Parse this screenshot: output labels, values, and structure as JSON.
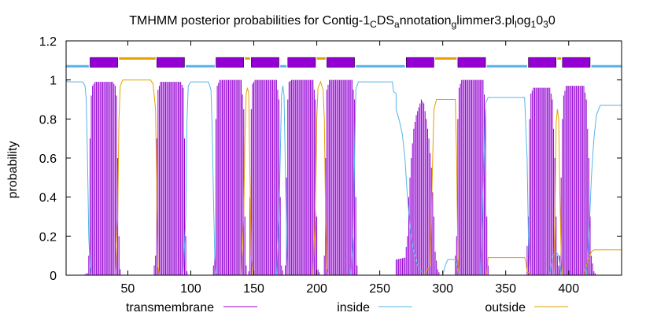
{
  "chart_data": {
    "type": "line",
    "title": "TMHMM posterior probabilities for Contig-1CDSannotationglimmer3.plog1030",
    "title_parts": [
      {
        "t": "TMHMM posterior probabilities for Contig-1",
        "sub": false
      },
      {
        "t": "C",
        "sub": true
      },
      {
        "t": "DS",
        "sub": false
      },
      {
        "t": "a",
        "sub": true
      },
      {
        "t": "nnotation",
        "sub": false
      },
      {
        "t": "g",
        "sub": true
      },
      {
        "t": "limmer3.pl",
        "sub": false
      },
      {
        "t": "l",
        "sub": true
      },
      {
        "t": "og",
        "sub": false
      },
      {
        "t": "1",
        "sub": true
      },
      {
        "t": "0",
        "sub": false
      },
      {
        "t": "3",
        "sub": true
      },
      {
        "t": "0",
        "sub": false
      }
    ],
    "xlabel": "",
    "ylabel": "probability",
    "xlim": [
      1,
      442
    ],
    "ylim": [
      0,
      1.2
    ],
    "x_ticks": [
      50,
      100,
      150,
      200,
      250,
      300,
      350,
      400
    ],
    "y_ticks": [
      "0",
      "0.2",
      "0.4",
      "0.6",
      "0.8",
      "1",
      "1.2"
    ],
    "grid": false,
    "legend_position": "bottom",
    "topology": {
      "tm_color": "#9400d3",
      "inside_color": "#56b4e9",
      "outside_color": "#e69f00",
      "tm_segments": [
        [
          20,
          42
        ],
        [
          73,
          95
        ],
        [
          120,
          142
        ],
        [
          148,
          170
        ],
        [
          177,
          199
        ],
        [
          208,
          230
        ],
        [
          271,
          293
        ],
        [
          312,
          334
        ],
        [
          368,
          390
        ],
        [
          395,
          417
        ]
      ],
      "outside_segments": [
        [
          43,
          72
        ],
        [
          143,
          147
        ],
        [
          200,
          207
        ],
        [
          294,
          311
        ],
        [
          391,
          394
        ]
      ],
      "inside_segments": [
        [
          1,
          19
        ],
        [
          96,
          119
        ],
        [
          171,
          176
        ],
        [
          231,
          270
        ],
        [
          335,
          367
        ],
        [
          418,
          442
        ]
      ]
    },
    "series": [
      {
        "name": "transmembrane",
        "color": "#9400d3",
        "style": "impulses",
        "points": [
          [
            1,
            0
          ],
          [
            14,
            0
          ],
          [
            18,
            0.01
          ],
          [
            19,
            0.1
          ],
          [
            20,
            0.7
          ],
          [
            21,
            0.92
          ],
          [
            22,
            0.97
          ],
          [
            24,
            0.99
          ],
          [
            38,
            0.99
          ],
          [
            40,
            0.97
          ],
          [
            41,
            0.92
          ],
          [
            42,
            0.6
          ],
          [
            43,
            0.2
          ],
          [
            44,
            0.03
          ],
          [
            45,
            0
          ],
          [
            70,
            0
          ],
          [
            72,
            0.1
          ],
          [
            73,
            0.7
          ],
          [
            74,
            0.95
          ],
          [
            76,
            0.99
          ],
          [
            92,
            0.99
          ],
          [
            94,
            0.96
          ],
          [
            95,
            0.7
          ],
          [
            96,
            0.2
          ],
          [
            97,
            0.02
          ],
          [
            98,
            0
          ],
          [
            117,
            0
          ],
          [
            119,
            0.1
          ],
          [
            120,
            0.8
          ],
          [
            121,
            0.97
          ],
          [
            123,
            1
          ],
          [
            140,
            1
          ],
          [
            142,
            0.85
          ],
          [
            143,
            0.3
          ],
          [
            144,
            0.05
          ],
          [
            145,
            0
          ],
          [
            146,
            0.02
          ],
          [
            147,
            0.4
          ],
          [
            148,
            0.85
          ],
          [
            149,
            0.98
          ],
          [
            151,
            1
          ],
          [
            168,
            1
          ],
          [
            170,
            0.9
          ],
          [
            171,
            0.4
          ],
          [
            172,
            0.05
          ],
          [
            174,
            0
          ],
          [
            175,
            0.05
          ],
          [
            176,
            0.5
          ],
          [
            177,
            0.9
          ],
          [
            178,
            0.99
          ],
          [
            180,
            1
          ],
          [
            197,
            1
          ],
          [
            199,
            0.9
          ],
          [
            200,
            0.3
          ],
          [
            201,
            0.03
          ],
          [
            203,
            0
          ],
          [
            205,
            0
          ],
          [
            206,
            0.1
          ],
          [
            207,
            0.6
          ],
          [
            208,
            0.95
          ],
          [
            210,
            1
          ],
          [
            228,
            1
          ],
          [
            230,
            0.9
          ],
          [
            231,
            0.4
          ],
          [
            232,
            0.05
          ],
          [
            233,
            0
          ],
          [
            262,
            0
          ],
          [
            263,
            0.08
          ],
          [
            270,
            0.09
          ],
          [
            272,
            0.2
          ],
          [
            273,
            0.4
          ],
          [
            275,
            0.6
          ],
          [
            277,
            0.75
          ],
          [
            279,
            0.82
          ],
          [
            281,
            0.86
          ],
          [
            283,
            0.9
          ],
          [
            285,
            0.88
          ],
          [
            287,
            0.8
          ],
          [
            289,
            0.7
          ],
          [
            291,
            0.55
          ],
          [
            293,
            0.3
          ],
          [
            294,
            0.12
          ],
          [
            296,
            0.03
          ],
          [
            298,
            0
          ],
          [
            309,
            0
          ],
          [
            311,
            0.2
          ],
          [
            312,
            0.8
          ],
          [
            313,
            0.96
          ],
          [
            315,
            1
          ],
          [
            332,
            1
          ],
          [
            334,
            0.85
          ],
          [
            335,
            0.3
          ],
          [
            336,
            0.05
          ],
          [
            337,
            0
          ],
          [
            366,
            0
          ],
          [
            368,
            0.3
          ],
          [
            369,
            0.8
          ],
          [
            370,
            0.93
          ],
          [
            372,
            0.96
          ],
          [
            385,
            0.96
          ],
          [
            387,
            0.9
          ],
          [
            389,
            0.6
          ],
          [
            390,
            0.3
          ],
          [
            391,
            0.1
          ],
          [
            392,
            0.05
          ],
          [
            393,
            0.1
          ],
          [
            394,
            0.5
          ],
          [
            395,
            0.8
          ],
          [
            396,
            0.92
          ],
          [
            398,
            0.97
          ],
          [
            412,
            0.97
          ],
          [
            414,
            0.9
          ],
          [
            416,
            0.6
          ],
          [
            417,
            0.3
          ],
          [
            418,
            0.1
          ],
          [
            420,
            0.02
          ],
          [
            422,
            0
          ],
          [
            442,
            0
          ]
        ]
      },
      {
        "name": "inside",
        "color": "#56b4e9",
        "style": "line",
        "points": [
          [
            1,
            1
          ],
          [
            2,
            0.99
          ],
          [
            14,
            0.99
          ],
          [
            16,
            0.97
          ],
          [
            17,
            0.9
          ],
          [
            18,
            0.6
          ],
          [
            19,
            0.2
          ],
          [
            20,
            0.05
          ],
          [
            21,
            0
          ],
          [
            94,
            0
          ],
          [
            96,
            0.3
          ],
          [
            97,
            0.8
          ],
          [
            98,
            0.97
          ],
          [
            100,
            0.99
          ],
          [
            114,
            0.99
          ],
          [
            116,
            0.95
          ],
          [
            117,
            0.75
          ],
          [
            118,
            0.4
          ],
          [
            119,
            0.1
          ],
          [
            120,
            0.01
          ],
          [
            121,
            0
          ],
          [
            168,
            0
          ],
          [
            170,
            0.3
          ],
          [
            172,
            0.92
          ],
          [
            173,
            0.97
          ],
          [
            174,
            0.92
          ],
          [
            176,
            0.2
          ],
          [
            177,
            0
          ],
          [
            227,
            0
          ],
          [
            229,
            0.2
          ],
          [
            230,
            0.6
          ],
          [
            231,
            0.95
          ],
          [
            233,
            0.99
          ],
          [
            260,
            0.99
          ],
          [
            261,
            0.94
          ],
          [
            263,
            0.93
          ],
          [
            263,
            0.85
          ],
          [
            266,
            0.78
          ],
          [
            268,
            0.72
          ],
          [
            270,
            0.6
          ],
          [
            272,
            0.4
          ],
          [
            274,
            0.25
          ],
          [
            276,
            0.15
          ],
          [
            278,
            0.1
          ],
          [
            280,
            0.05
          ],
          [
            285,
            0
          ],
          [
            300,
            0
          ],
          [
            302,
            0.05
          ],
          [
            304,
            0.08
          ],
          [
            310,
            0.08
          ],
          [
            312,
            0.03
          ],
          [
            313,
            0
          ],
          [
            330,
            0
          ],
          [
            332,
            0.4
          ],
          [
            334,
            0.88
          ],
          [
            336,
            0.91
          ],
          [
            365,
            0.91
          ],
          [
            367,
            0.6
          ],
          [
            368,
            0.2
          ],
          [
            369,
            0.02
          ],
          [
            370,
            0
          ],
          [
            385,
            0
          ],
          [
            387,
            0.1
          ],
          [
            390,
            0.12
          ],
          [
            392,
            0.1
          ],
          [
            394,
            0
          ],
          [
            414,
            0
          ],
          [
            416,
            0.2
          ],
          [
            418,
            0.5
          ],
          [
            420,
            0.7
          ],
          [
            422,
            0.82
          ],
          [
            425,
            0.87
          ],
          [
            442,
            0.87
          ]
        ]
      },
      {
        "name": "outside",
        "color": "#e69f00",
        "style": "line",
        "points": [
          [
            1,
            0
          ],
          [
            40,
            0
          ],
          [
            42,
            0.3
          ],
          [
            43,
            0.8
          ],
          [
            44,
            0.97
          ],
          [
            46,
            1
          ],
          [
            68,
            1
          ],
          [
            70,
            0.98
          ],
          [
            72,
            0.85
          ],
          [
            73,
            0.4
          ],
          [
            74,
            0.05
          ],
          [
            75,
            0
          ],
          [
            140,
            0
          ],
          [
            142,
            0.3
          ],
          [
            143,
            0.7
          ],
          [
            144,
            0.93
          ],
          [
            145,
            0.96
          ],
          [
            146,
            0.93
          ],
          [
            147,
            0.5
          ],
          [
            148,
            0.1
          ],
          [
            149,
            0
          ],
          [
            197,
            0
          ],
          [
            199,
            0.35
          ],
          [
            200,
            0.8
          ],
          [
            201,
            0.96
          ],
          [
            203,
            0.99
          ],
          [
            205,
            0.95
          ],
          [
            206,
            0.8
          ],
          [
            207,
            0.3
          ],
          [
            208,
            0.04
          ],
          [
            209,
            0
          ],
          [
            285,
            0
          ],
          [
            290,
            0.05
          ],
          [
            292,
            0.6
          ],
          [
            293,
            0.85
          ],
          [
            295,
            0.9
          ],
          [
            310,
            0.9
          ],
          [
            311,
            0.6
          ],
          [
            312,
            0.1
          ],
          [
            313,
            0
          ],
          [
            335,
            0
          ],
          [
            336,
            0.09
          ],
          [
            365,
            0.09
          ],
          [
            366,
            0.07
          ],
          [
            367,
            0.02
          ],
          [
            370,
            0
          ],
          [
            388,
            0
          ],
          [
            389,
            0.3
          ],
          [
            390,
            0.78
          ],
          [
            391,
            0.85
          ],
          [
            392,
            0.8
          ],
          [
            393,
            0.4
          ],
          [
            394,
            0.1
          ],
          [
            395,
            0
          ],
          [
            412,
            0
          ],
          [
            414,
            0.05
          ],
          [
            418,
            0.12
          ],
          [
            420,
            0.13
          ],
          [
            442,
            0.13
          ]
        ]
      }
    ]
  }
}
